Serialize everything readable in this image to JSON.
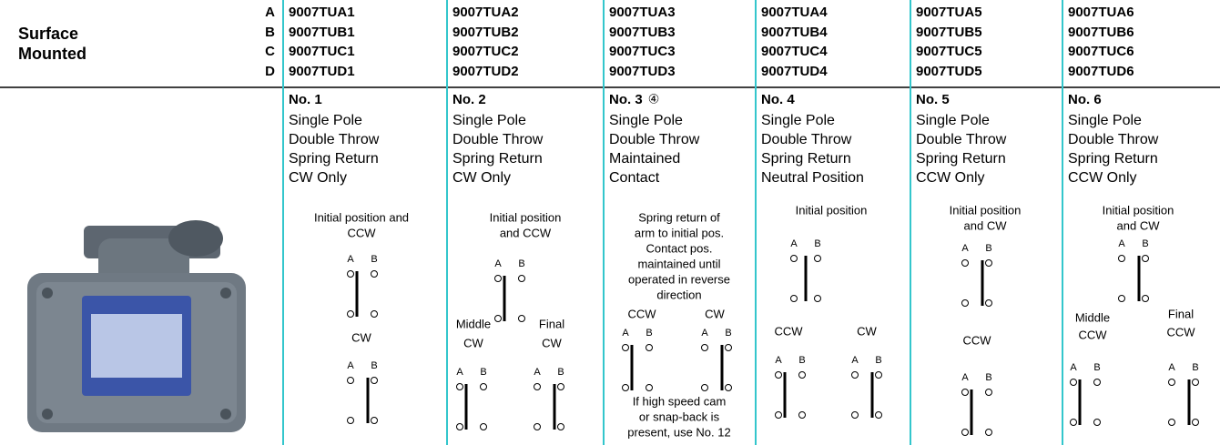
{
  "header": {
    "title": [
      "Surface",
      "Mounted"
    ],
    "letters": [
      "A",
      "B",
      "C",
      "D"
    ]
  },
  "columns": [
    {
      "parts": [
        "9007TUA1",
        "9007TUB1",
        "9007TUC1",
        "9007TUD1"
      ],
      "number": "No. 1",
      "description": [
        "Single Pole",
        "Double Throw",
        "Spring Return",
        "CW Only"
      ],
      "texts": [
        "Initial position and",
        "CCW",
        "CW"
      ],
      "diagrams": [
        [
          "A",
          "B"
        ],
        [
          "A",
          "B"
        ]
      ]
    },
    {
      "parts": [
        "9007TUA2",
        "9007TUB2",
        "9007TUC2",
        "9007TUD2"
      ],
      "number": "No. 2",
      "description": [
        "Single Pole",
        "Double Throw",
        "Spring Return",
        "CW Only"
      ],
      "texts": [
        "Initial position",
        "and CCW",
        "Middle",
        "CW",
        "Final",
        "CW"
      ],
      "diagrams": [
        [
          "A",
          "B"
        ],
        [
          "A",
          "B"
        ],
        [
          "A",
          "B"
        ]
      ]
    },
    {
      "parts": [
        "9007TUA3",
        "9007TUB3",
        "9007TUC3",
        "9007TUD3"
      ],
      "number": "No. 3",
      "note": "④",
      "description": [
        "Single Pole",
        "Double Throw",
        "Maintained",
        "Contact"
      ],
      "texts": [
        "Spring return of",
        "arm to initial pos.",
        "Contact pos.",
        "maintained until",
        "operated in reverse",
        "direction",
        "CCW",
        "CW",
        "If high speed cam",
        "or snap-back is",
        "present, use No. 12"
      ],
      "diagrams": [
        [
          "A",
          "B"
        ],
        [
          "A",
          "B"
        ]
      ]
    },
    {
      "parts": [
        "9007TUA4",
        "9007TUB4",
        "9007TUC4",
        "9007TUD4"
      ],
      "number": "No. 4",
      "description": [
        "Single Pole",
        "Double Throw",
        "Spring Return",
        "Neutral Position"
      ],
      "texts": [
        "Initial position",
        "CCW",
        "CW"
      ],
      "diagrams": [
        [
          "A",
          "B"
        ],
        [
          "A",
          "B"
        ],
        [
          "A",
          "B"
        ]
      ]
    },
    {
      "parts": [
        "9007TUA5",
        "9007TUB5",
        "9007TUC5",
        "9007TUD5"
      ],
      "number": "No. 5",
      "description": [
        "Single Pole",
        "Double Throw",
        "Spring Return",
        "CCW Only"
      ],
      "texts": [
        "Initial position",
        "and CW",
        "CCW"
      ],
      "diagrams": [
        [
          "A",
          "B"
        ],
        [
          "A",
          "B"
        ]
      ]
    },
    {
      "parts": [
        "9007TUA6",
        "9007TUB6",
        "9007TUC6",
        "9007TUD6"
      ],
      "number": "No. 6",
      "description": [
        "Single Pole",
        "Double Throw",
        "Spring Return",
        "CCW Only"
      ],
      "texts": [
        "Initial position",
        "and CW",
        "Middle",
        "CCW",
        "Final",
        "CCW"
      ],
      "diagrams": [
        [
          "A",
          "B"
        ],
        [
          "A",
          "B"
        ],
        [
          "A",
          "B"
        ]
      ]
    }
  ]
}
